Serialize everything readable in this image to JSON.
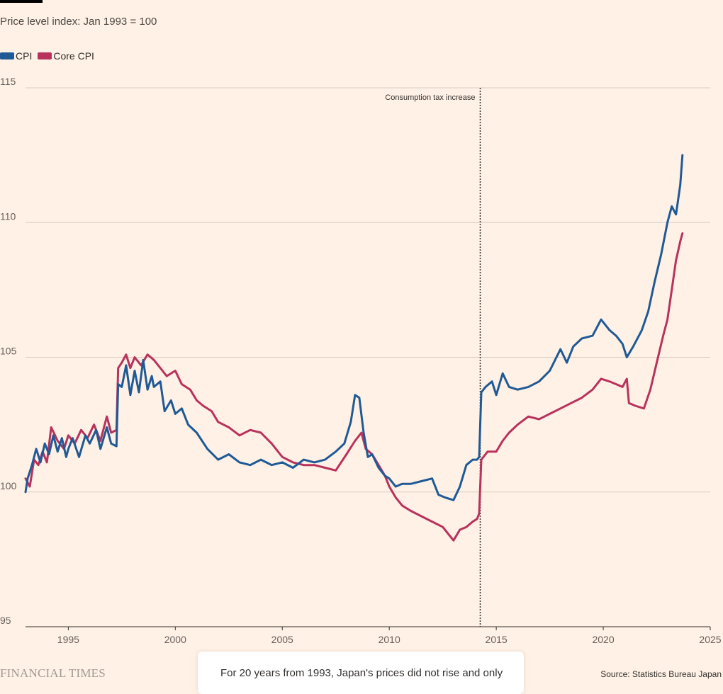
{
  "subtitle": "Price level index: Jan 1993 = 100",
  "brand": "FINANCIAL TIMES",
  "source": "Source: Statistics Bureau Japan",
  "caption": "For 20 years from 1993, Japan's prices did not rise and only",
  "colors": {
    "cpi": "#1f5a96",
    "core": "#b8325c",
    "grid": "#d9cdc3",
    "axis": "#33302e"
  },
  "chart_data": {
    "type": "line",
    "ylim": [
      95,
      115
    ],
    "xlim": [
      1993,
      2025
    ],
    "yticks": [
      95,
      100,
      105,
      110,
      115
    ],
    "xticks": [
      1995,
      2000,
      2005,
      2010,
      2015,
      2020,
      2025
    ],
    "annotation": {
      "x": 2014.25,
      "label": "Consumption tax increase"
    },
    "series": [
      {
        "name": "CPI",
        "x": [
          1993.0,
          1993.1,
          1993.3,
          1993.5,
          1993.7,
          1993.9,
          1994.1,
          1994.3,
          1994.5,
          1994.7,
          1994.9,
          1995.0,
          1995.2,
          1995.5,
          1995.8,
          1996.0,
          1996.3,
          1996.5,
          1996.8,
          1997.0,
          1997.25,
          1997.33,
          1997.5,
          1997.7,
          1997.9,
          1998.1,
          1998.3,
          1998.5,
          1998.7,
          1998.9,
          1999.0,
          1999.3,
          1999.5,
          1999.8,
          2000.0,
          2000.3,
          2000.6,
          2001.0,
          2001.5,
          2002.0,
          2002.5,
          2003.0,
          2003.5,
          2004.0,
          2004.5,
          2005.0,
          2005.5,
          2006.0,
          2006.5,
          2007.0,
          2007.5,
          2007.9,
          2008.2,
          2008.4,
          2008.6,
          2008.8,
          2009.0,
          2009.2,
          2009.5,
          2009.8,
          2010.0,
          2010.3,
          2010.6,
          2011.0,
          2011.5,
          2012.0,
          2012.3,
          2012.6,
          2013.0,
          2013.3,
          2013.6,
          2013.9,
          2014.1,
          2014.2,
          2014.3,
          2014.5,
          2014.8,
          2015.0,
          2015.3,
          2015.6,
          2016.0,
          2016.5,
          2017.0,
          2017.5,
          2018.0,
          2018.3,
          2018.6,
          2019.0,
          2019.5,
          2019.9,
          2020.3,
          2020.6,
          2020.9,
          2021.1,
          2021.4,
          2021.8,
          2022.1,
          2022.4,
          2022.7,
          2023.0,
          2023.2,
          2023.4,
          2023.6,
          2023.7
        ],
        "values": [
          100.0,
          100.5,
          101.0,
          101.6,
          101.1,
          101.8,
          101.4,
          102.1,
          101.5,
          102.0,
          101.3,
          101.6,
          102.0,
          101.3,
          102.1,
          101.8,
          102.3,
          101.6,
          102.4,
          101.8,
          101.7,
          104.0,
          103.9,
          104.7,
          103.6,
          104.5,
          103.7,
          104.9,
          103.8,
          104.3,
          103.9,
          104.1,
          103.0,
          103.4,
          102.9,
          103.1,
          102.5,
          102.2,
          101.6,
          101.2,
          101.4,
          101.1,
          101.0,
          101.2,
          101.0,
          101.1,
          100.9,
          101.2,
          101.1,
          101.2,
          101.5,
          101.8,
          102.6,
          103.6,
          103.5,
          102.2,
          101.3,
          101.4,
          100.9,
          100.6,
          100.5,
          100.2,
          100.3,
          100.3,
          100.4,
          100.5,
          99.9,
          99.8,
          99.7,
          100.2,
          101.0,
          101.2,
          101.2,
          101.3,
          103.7,
          103.9,
          104.1,
          103.6,
          104.4,
          103.9,
          103.8,
          103.9,
          104.1,
          104.5,
          105.3,
          104.8,
          105.4,
          105.7,
          105.8,
          106.4,
          106.0,
          105.8,
          105.5,
          105.0,
          105.4,
          106.0,
          106.7,
          107.8,
          108.8,
          110.0,
          110.6,
          110.3,
          111.4,
          112.5
        ]
      },
      {
        "name": "Core CPI",
        "x": [
          1993.0,
          1993.2,
          1993.4,
          1993.6,
          1993.8,
          1994.0,
          1994.2,
          1994.5,
          1994.8,
          1995.0,
          1995.3,
          1995.6,
          1995.9,
          1996.2,
          1996.5,
          1996.8,
          1997.0,
          1997.25,
          1997.33,
          1997.5,
          1997.7,
          1997.9,
          1998.1,
          1998.4,
          1998.7,
          1999.0,
          1999.3,
          1999.6,
          2000.0,
          2000.3,
          2000.7,
          2001.0,
          2001.3,
          2001.7,
          2002.0,
          2002.5,
          2003.0,
          2003.5,
          2004.0,
          2004.5,
          2005.0,
          2005.5,
          2006.0,
          2006.5,
          2007.0,
          2007.5,
          2008.0,
          2008.4,
          2008.7,
          2008.9,
          2009.2,
          2009.5,
          2009.8,
          2010.0,
          2010.3,
          2010.6,
          2011.0,
          2011.5,
          2012.0,
          2012.5,
          2013.0,
          2013.3,
          2013.6,
          2013.9,
          2014.1,
          2014.2,
          2014.3,
          2014.6,
          2015.0,
          2015.3,
          2015.6,
          2016.0,
          2016.5,
          2017.0,
          2017.5,
          2018.0,
          2018.5,
          2019.0,
          2019.5,
          2019.9,
          2020.3,
          2020.6,
          2020.9,
          2021.1,
          2021.2,
          2021.5,
          2021.9,
          2022.2,
          2022.5,
          2022.8,
          2023.0,
          2023.2,
          2023.4,
          2023.6,
          2023.7
        ],
        "values": [
          100.5,
          100.2,
          101.2,
          101.0,
          101.5,
          101.1,
          102.4,
          101.9,
          101.6,
          102.1,
          101.8,
          102.3,
          102.0,
          102.5,
          101.9,
          102.8,
          102.2,
          102.3,
          104.6,
          104.8,
          105.1,
          104.6,
          105.0,
          104.7,
          105.1,
          104.9,
          104.6,
          104.3,
          104.5,
          104.0,
          103.8,
          103.4,
          103.2,
          103.0,
          102.6,
          102.4,
          102.1,
          102.3,
          102.2,
          101.8,
          101.3,
          101.1,
          101.0,
          101.0,
          100.9,
          100.8,
          101.4,
          101.9,
          102.2,
          101.6,
          101.4,
          101.0,
          100.6,
          100.2,
          99.8,
          99.5,
          99.3,
          99.1,
          98.9,
          98.7,
          98.2,
          98.6,
          98.7,
          98.9,
          99.0,
          99.2,
          101.2,
          101.5,
          101.5,
          101.9,
          102.2,
          102.5,
          102.8,
          102.7,
          102.9,
          103.1,
          103.3,
          103.5,
          103.8,
          104.2,
          104.1,
          104.0,
          103.9,
          104.2,
          103.3,
          103.2,
          103.1,
          103.8,
          104.8,
          105.8,
          106.4,
          107.5,
          108.6,
          109.3,
          109.6
        ]
      }
    ]
  }
}
